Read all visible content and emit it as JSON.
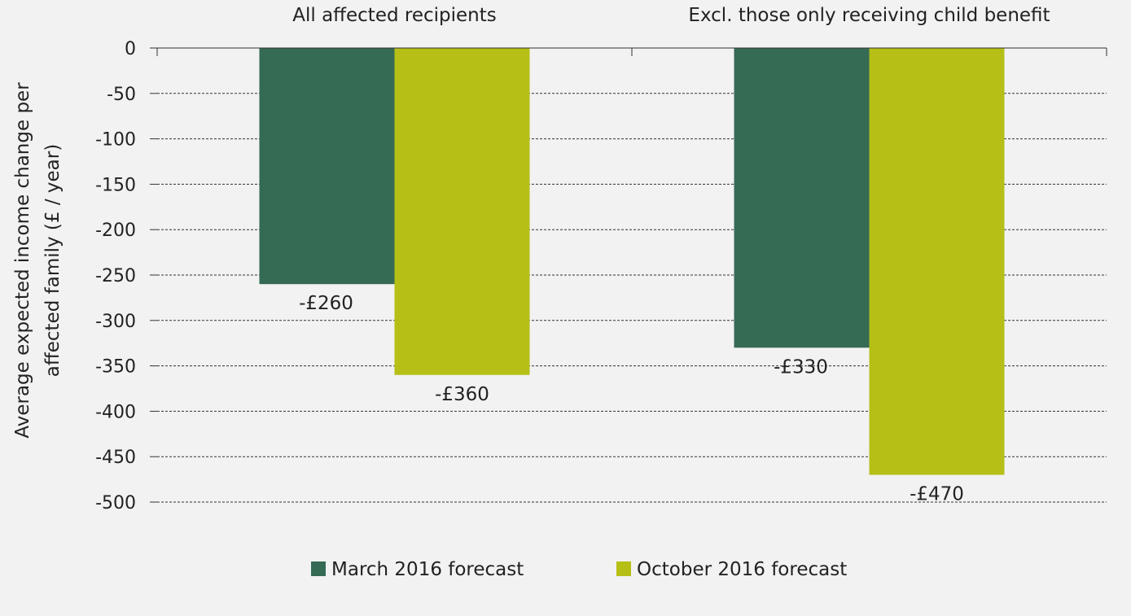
{
  "chart_data": {
    "type": "bar",
    "title": "",
    "categories": [
      "All affected recipients",
      "Excl. those only receiving child benefit"
    ],
    "series": [
      {
        "name": "March 2016 forecast",
        "color": "#356a55",
        "values": [
          -260,
          -330
        ],
        "labels": [
          "-£260",
          "-£330"
        ]
      },
      {
        "name": "October 2016 forecast",
        "color": "#b5bf16",
        "values": [
          -360,
          -470
        ],
        "labels": [
          "-£360",
          "-£470"
        ]
      }
    ],
    "xlabel": "",
    "ylabel": [
      "Average expected income change per",
      "affected family (£ / year)"
    ],
    "ylim": [
      -500,
      0
    ],
    "yticks": [
      0,
      -50,
      -100,
      -150,
      -200,
      -250,
      -300,
      -350,
      -400,
      -450,
      -500
    ],
    "ytick_labels": [
      "0",
      "-50",
      "-100",
      "-150",
      "-200",
      "-250",
      "-300",
      "-350",
      "-400",
      "-450",
      "-500"
    ],
    "grid": true,
    "legend_position": "bottom"
  }
}
